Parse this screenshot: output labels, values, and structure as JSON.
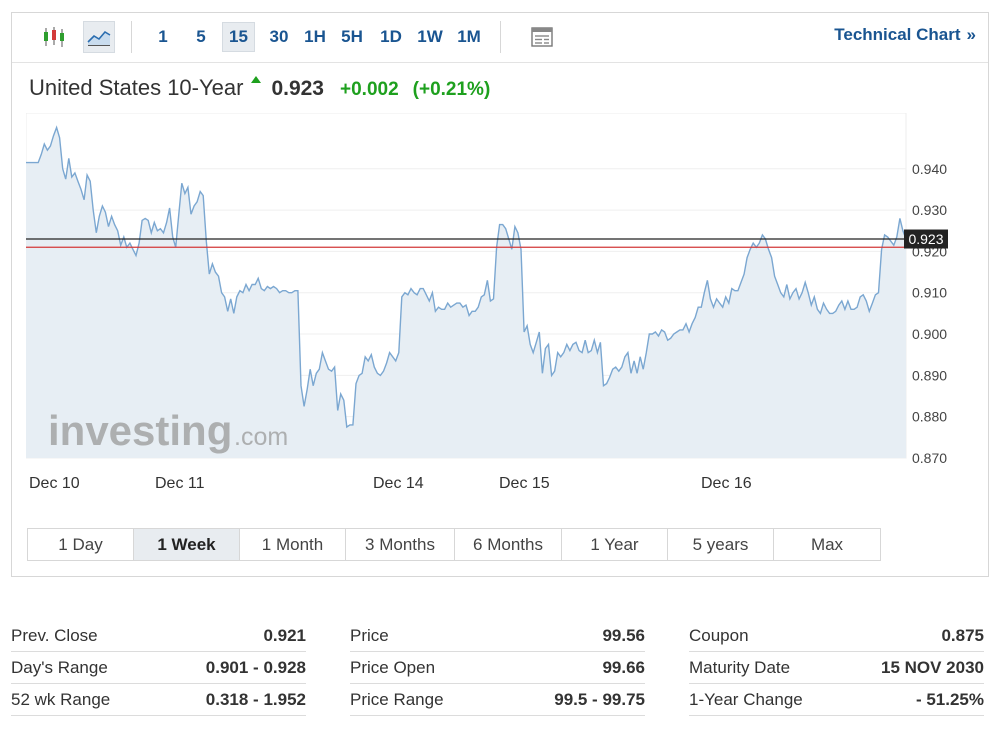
{
  "toolbar": {
    "chart_type_icons": [
      "candlestick-icon",
      "line-chart-icon"
    ],
    "periods": [
      "1",
      "5",
      "15",
      "30",
      "1H",
      "5H",
      "1D",
      "1W",
      "1M"
    ],
    "active_period": "15",
    "table_icon": "table-view-icon",
    "technical_link": "Technical Chart",
    "technical_chevron": "»"
  },
  "instrument": {
    "name": "United States 10-Year",
    "price": "0.923",
    "change": "+0.002",
    "change_pct": "(+0.21%)",
    "direction": "up"
  },
  "chart_data": {
    "type": "area",
    "x_labels": [
      "Dec 10",
      "Dec 11",
      "Dec 14",
      "Dec 15",
      "Dec 16"
    ],
    "yticks": [
      "0.870",
      "0.880",
      "0.890",
      "0.900",
      "0.910",
      "0.920",
      "0.930",
      "0.940"
    ],
    "ylim": [
      0.87,
      0.9535
    ],
    "current_value": "0.923",
    "current_line": 0.923,
    "prev_close_line": 0.921,
    "watermark": {
      "brand": "investing",
      "suffix": ".com"
    },
    "colors": {
      "line": "#7ba7d1",
      "fill": "#e7eef4",
      "current": "#222222",
      "prev_close": "#d33a3a",
      "label_bg": "#222222"
    },
    "y": [
      0.9415,
      0.9415,
      0.9415,
      0.9415,
      0.9415,
      0.9435,
      0.946,
      0.9445,
      0.9455,
      0.948,
      0.95,
      0.9475,
      0.94,
      0.9375,
      0.9425,
      0.938,
      0.939,
      0.937,
      0.935,
      0.9325,
      0.9385,
      0.937,
      0.93,
      0.9245,
      0.9285,
      0.931,
      0.9295,
      0.926,
      0.9285,
      0.9265,
      0.925,
      0.9215,
      0.9235,
      0.921,
      0.922,
      0.9205,
      0.919,
      0.922,
      0.9275,
      0.928,
      0.9275,
      0.9245,
      0.927,
      0.925,
      0.9255,
      0.9245,
      0.927,
      0.9305,
      0.9235,
      0.921,
      0.929,
      0.9365,
      0.934,
      0.9355,
      0.929,
      0.931,
      0.932,
      0.9345,
      0.9335,
      0.9225,
      0.9145,
      0.917,
      0.915,
      0.914,
      0.91,
      0.909,
      0.9055,
      0.9085,
      0.905,
      0.909,
      0.9105,
      0.91,
      0.912,
      0.9105,
      0.912,
      0.912,
      0.9135,
      0.911,
      0.9105,
      0.9115,
      0.911,
      0.9115,
      0.911,
      0.91,
      0.9105,
      0.9105,
      0.91,
      0.91,
      0.9105,
      0.9105,
      0.8875,
      0.8825,
      0.8865,
      0.8915,
      0.8875,
      0.8905,
      0.8915,
      0.8955,
      0.8935,
      0.8915,
      0.891,
      0.892,
      0.8815,
      0.8855,
      0.884,
      0.8775,
      0.878,
      0.878,
      0.888,
      0.89,
      0.8905,
      0.8945,
      0.8935,
      0.895,
      0.892,
      0.8905,
      0.89,
      0.891,
      0.893,
      0.8955,
      0.8945,
      0.8935,
      0.8955,
      0.909,
      0.91,
      0.9095,
      0.911,
      0.91,
      0.9095,
      0.911,
      0.911,
      0.9095,
      0.908,
      0.91,
      0.9055,
      0.9065,
      0.906,
      0.906,
      0.9075,
      0.9065,
      0.907,
      0.9075,
      0.9075,
      0.9065,
      0.907,
      0.9045,
      0.9055,
      0.9055,
      0.9065,
      0.909,
      0.9095,
      0.913,
      0.908,
      0.9085,
      0.921,
      0.9265,
      0.9265,
      0.9255,
      0.923,
      0.9205,
      0.926,
      0.9245,
      0.9205,
      0.9005,
      0.902,
      0.8975,
      0.8955,
      0.898,
      0.9005,
      0.8905,
      0.8965,
      0.8975,
      0.89,
      0.891,
      0.8955,
      0.8945,
      0.8955,
      0.8975,
      0.896,
      0.8975,
      0.898,
      0.896,
      0.8955,
      0.8985,
      0.8955,
      0.896,
      0.8985,
      0.8955,
      0.898,
      0.8875,
      0.888,
      0.8895,
      0.8915,
      0.892,
      0.891,
      0.892,
      0.8945,
      0.8955,
      0.8905,
      0.8935,
      0.8905,
      0.8945,
      0.8915,
      0.8955,
      0.9,
      0.9,
      0.9005,
      0.8995,
      0.901,
      0.9005,
      0.8985,
      0.899,
      0.9,
      0.9005,
      0.901,
      0.901,
      0.9025,
      0.9005,
      0.9025,
      0.904,
      0.9065,
      0.9065,
      0.91,
      0.913,
      0.9085,
      0.9065,
      0.9085,
      0.9075,
      0.9065,
      0.909,
      0.9075,
      0.911,
      0.9105,
      0.9105,
      0.9125,
      0.9145,
      0.9185,
      0.9205,
      0.922,
      0.921,
      0.922,
      0.924,
      0.923,
      0.9205,
      0.9185,
      0.914,
      0.912,
      0.91,
      0.909,
      0.912,
      0.9085,
      0.91,
      0.911,
      0.9085,
      0.91,
      0.9125,
      0.91,
      0.907,
      0.909,
      0.906,
      0.905,
      0.9075,
      0.906,
      0.905,
      0.905,
      0.9055,
      0.907,
      0.908,
      0.906,
      0.908,
      0.906,
      0.906,
      0.9065,
      0.909,
      0.9095,
      0.908,
      0.9055,
      0.9075,
      0.9095,
      0.91,
      0.9205,
      0.924,
      0.9235,
      0.9225,
      0.9215,
      0.9235,
      0.928,
      0.925,
      0.923
    ]
  },
  "range_tabs": [
    "1 Day",
    "1 Week",
    "1 Month",
    "3 Months",
    "6 Months",
    "1 Year",
    "5 years",
    "Max"
  ],
  "active_range": "1 Week",
  "stats": {
    "col1": [
      {
        "label": "Prev. Close",
        "value": "0.921"
      },
      {
        "label": "Day's Range",
        "value": "0.901 - 0.928"
      },
      {
        "label": "52 wk Range",
        "value": "0.318 - 1.952"
      }
    ],
    "col2": [
      {
        "label": "Price",
        "value": "99.56"
      },
      {
        "label": "Price Open",
        "value": "99.66"
      },
      {
        "label": "Price Range",
        "value": "99.5 - 99.75"
      }
    ],
    "col3": [
      {
        "label": "Coupon",
        "value": "0.875"
      },
      {
        "label": "Maturity Date",
        "value": "15 NOV 2030"
      },
      {
        "label": "1-Year Change",
        "value": "- 51.25%"
      }
    ]
  }
}
